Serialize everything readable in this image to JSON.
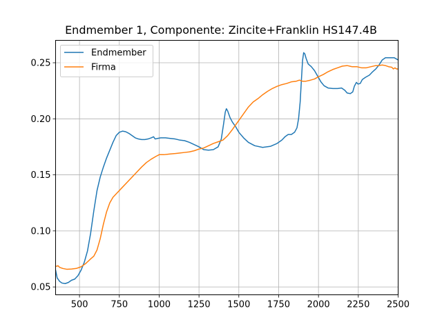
{
  "chart_data": {
    "type": "line",
    "title": "Endmember 1, Componente: Zincite+Franklin HS147.4B",
    "xlabel": "",
    "ylabel": "",
    "xlim": [
      350,
      2500
    ],
    "ylim": [
      0.043,
      0.27
    ],
    "xticks": [
      500,
      750,
      1000,
      1250,
      1500,
      1750,
      2000,
      2250,
      2500
    ],
    "yticks": [
      0.05,
      0.1,
      0.15,
      0.2,
      0.25
    ],
    "ytick_labels": [
      "0.05",
      "0.10",
      "0.15",
      "0.20",
      "0.25"
    ],
    "grid": true,
    "legend_position": "upper-left",
    "series": [
      {
        "name": "Endmember",
        "color": "#1f77b4",
        "points": [
          [
            350,
            0.065
          ],
          [
            360,
            0.058
          ],
          [
            375,
            0.055
          ],
          [
            390,
            0.0535
          ],
          [
            410,
            0.053
          ],
          [
            430,
            0.054
          ],
          [
            450,
            0.056
          ],
          [
            470,
            0.057
          ],
          [
            490,
            0.06
          ],
          [
            510,
            0.065
          ],
          [
            530,
            0.072
          ],
          [
            550,
            0.082
          ],
          [
            570,
            0.098
          ],
          [
            590,
            0.118
          ],
          [
            610,
            0.136
          ],
          [
            630,
            0.148
          ],
          [
            650,
            0.157
          ],
          [
            670,
            0.165
          ],
          [
            690,
            0.172
          ],
          [
            710,
            0.179
          ],
          [
            730,
            0.185
          ],
          [
            750,
            0.188
          ],
          [
            770,
            0.189
          ],
          [
            790,
            0.1885
          ],
          [
            810,
            0.187
          ],
          [
            830,
            0.185
          ],
          [
            850,
            0.183
          ],
          [
            870,
            0.182
          ],
          [
            890,
            0.1815
          ],
          [
            910,
            0.1815
          ],
          [
            930,
            0.182
          ],
          [
            950,
            0.183
          ],
          [
            965,
            0.184
          ],
          [
            975,
            0.182
          ],
          [
            990,
            0.1825
          ],
          [
            1010,
            0.183
          ],
          [
            1040,
            0.183
          ],
          [
            1070,
            0.1825
          ],
          [
            1100,
            0.182
          ],
          [
            1130,
            0.181
          ],
          [
            1160,
            0.1805
          ],
          [
            1190,
            0.179
          ],
          [
            1220,
            0.177
          ],
          [
            1250,
            0.175
          ],
          [
            1280,
            0.1725
          ],
          [
            1310,
            0.172
          ],
          [
            1340,
            0.1725
          ],
          [
            1370,
            0.175
          ],
          [
            1390,
            0.182
          ],
          [
            1405,
            0.196
          ],
          [
            1415,
            0.206
          ],
          [
            1422,
            0.209
          ],
          [
            1430,
            0.207
          ],
          [
            1445,
            0.201
          ],
          [
            1460,
            0.197
          ],
          [
            1480,
            0.193
          ],
          [
            1500,
            0.188
          ],
          [
            1530,
            0.183
          ],
          [
            1560,
            0.179
          ],
          [
            1600,
            0.176
          ],
          [
            1650,
            0.1745
          ],
          [
            1700,
            0.1755
          ],
          [
            1740,
            0.178
          ],
          [
            1770,
            0.181
          ],
          [
            1790,
            0.184
          ],
          [
            1810,
            0.186
          ],
          [
            1830,
            0.186
          ],
          [
            1850,
            0.188
          ],
          [
            1865,
            0.192
          ],
          [
            1875,
            0.2
          ],
          [
            1885,
            0.215
          ],
          [
            1893,
            0.235
          ],
          [
            1900,
            0.252
          ],
          [
            1907,
            0.259
          ],
          [
            1914,
            0.258
          ],
          [
            1922,
            0.254
          ],
          [
            1935,
            0.249
          ],
          [
            1955,
            0.2465
          ],
          [
            1975,
            0.243
          ],
          [
            1995,
            0.238
          ],
          [
            2015,
            0.233
          ],
          [
            2035,
            0.2295
          ],
          [
            2060,
            0.2275
          ],
          [
            2090,
            0.227
          ],
          [
            2120,
            0.227
          ],
          [
            2145,
            0.2275
          ],
          [
            2165,
            0.2255
          ],
          [
            2180,
            0.223
          ],
          [
            2200,
            0.2225
          ],
          [
            2215,
            0.224
          ],
          [
            2225,
            0.229
          ],
          [
            2238,
            0.2325
          ],
          [
            2248,
            0.231
          ],
          [
            2262,
            0.2315
          ],
          [
            2275,
            0.235
          ],
          [
            2295,
            0.237
          ],
          [
            2320,
            0.239
          ],
          [
            2340,
            0.242
          ],
          [
            2360,
            0.2445
          ],
          [
            2380,
            0.248
          ],
          [
            2400,
            0.2525
          ],
          [
            2420,
            0.2545
          ],
          [
            2450,
            0.2545
          ],
          [
            2475,
            0.2545
          ],
          [
            2500,
            0.2525
          ]
        ]
      },
      {
        "name": "Firma",
        "color": "#ff7f0e",
        "points": [
          [
            350,
            0.0685
          ],
          [
            360,
            0.0685
          ],
          [
            365,
            0.069
          ],
          [
            375,
            0.0675
          ],
          [
            395,
            0.0665
          ],
          [
            420,
            0.0658
          ],
          [
            450,
            0.066
          ],
          [
            480,
            0.0665
          ],
          [
            510,
            0.068
          ],
          [
            540,
            0.071
          ],
          [
            570,
            0.075
          ],
          [
            590,
            0.0775
          ],
          [
            610,
            0.083
          ],
          [
            630,
            0.093
          ],
          [
            650,
            0.106
          ],
          [
            670,
            0.117
          ],
          [
            690,
            0.125
          ],
          [
            710,
            0.13
          ],
          [
            740,
            0.1345
          ],
          [
            770,
            0.139
          ],
          [
            800,
            0.1435
          ],
          [
            830,
            0.148
          ],
          [
            860,
            0.1525
          ],
          [
            890,
            0.157
          ],
          [
            920,
            0.161
          ],
          [
            950,
            0.164
          ],
          [
            980,
            0.1665
          ],
          [
            1000,
            0.168
          ],
          [
            1030,
            0.168
          ],
          [
            1060,
            0.1685
          ],
          [
            1100,
            0.169
          ],
          [
            1130,
            0.1695
          ],
          [
            1160,
            0.17
          ],
          [
            1190,
            0.1705
          ],
          [
            1220,
            0.1715
          ],
          [
            1250,
            0.173
          ],
          [
            1280,
            0.174
          ],
          [
            1310,
            0.176
          ],
          [
            1340,
            0.178
          ],
          [
            1370,
            0.1795
          ],
          [
            1400,
            0.181
          ],
          [
            1430,
            0.185
          ],
          [
            1460,
            0.1905
          ],
          [
            1500,
            0.1985
          ],
          [
            1530,
            0.2045
          ],
          [
            1560,
            0.2105
          ],
          [
            1590,
            0.215
          ],
          [
            1620,
            0.218
          ],
          [
            1650,
            0.2215
          ],
          [
            1680,
            0.2245
          ],
          [
            1710,
            0.227
          ],
          [
            1740,
            0.229
          ],
          [
            1770,
            0.2305
          ],
          [
            1800,
            0.2315
          ],
          [
            1830,
            0.233
          ],
          [
            1860,
            0.2335
          ],
          [
            1880,
            0.2345
          ],
          [
            1900,
            0.2335
          ],
          [
            1920,
            0.2335
          ],
          [
            1950,
            0.2345
          ],
          [
            1975,
            0.2355
          ],
          [
            2000,
            0.2375
          ],
          [
            2030,
            0.2395
          ],
          [
            2060,
            0.242
          ],
          [
            2090,
            0.244
          ],
          [
            2120,
            0.2455
          ],
          [
            2150,
            0.247
          ],
          [
            2180,
            0.2475
          ],
          [
            2210,
            0.2465
          ],
          [
            2240,
            0.2465
          ],
          [
            2270,
            0.2455
          ],
          [
            2300,
            0.2455
          ],
          [
            2330,
            0.2465
          ],
          [
            2360,
            0.2475
          ],
          [
            2380,
            0.2475
          ],
          [
            2400,
            0.248
          ],
          [
            2420,
            0.2475
          ],
          [
            2440,
            0.2465
          ],
          [
            2460,
            0.246
          ],
          [
            2470,
            0.2445
          ],
          [
            2480,
            0.2455
          ],
          [
            2490,
            0.2445
          ],
          [
            2500,
            0.2445
          ]
        ]
      }
    ]
  }
}
